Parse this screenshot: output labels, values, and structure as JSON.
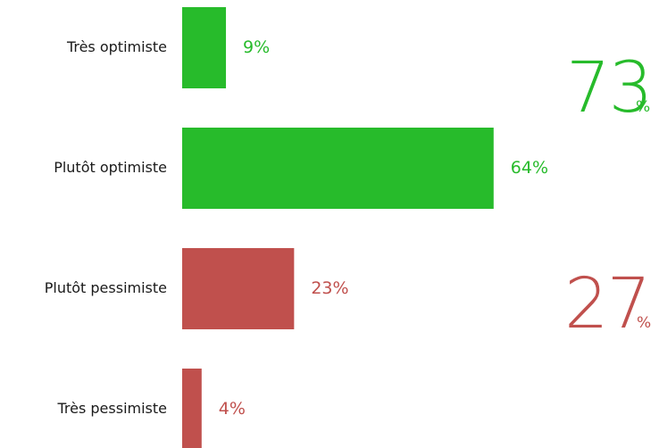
{
  "chart_data": {
    "type": "bar",
    "orientation": "horizontal",
    "categories": [
      "Très optimiste",
      "Plutôt optimiste",
      "Plutôt pessimiste",
      "Très pessimiste"
    ],
    "values": [
      9,
      64,
      23,
      4
    ],
    "value_labels": [
      "9%",
      "64%",
      "23%",
      "4%"
    ],
    "bar_colors": [
      "#27bb2b",
      "#27bb2b",
      "#c0504d",
      "#c0504d"
    ],
    "xlim": [
      0,
      100
    ],
    "grid": false,
    "legend": "none",
    "totals": [
      {
        "value": "73",
        "unit": "%",
        "color": "#27bb2b"
      },
      {
        "value": "27",
        "unit": "%",
        "color": "#c0504d"
      }
    ]
  }
}
